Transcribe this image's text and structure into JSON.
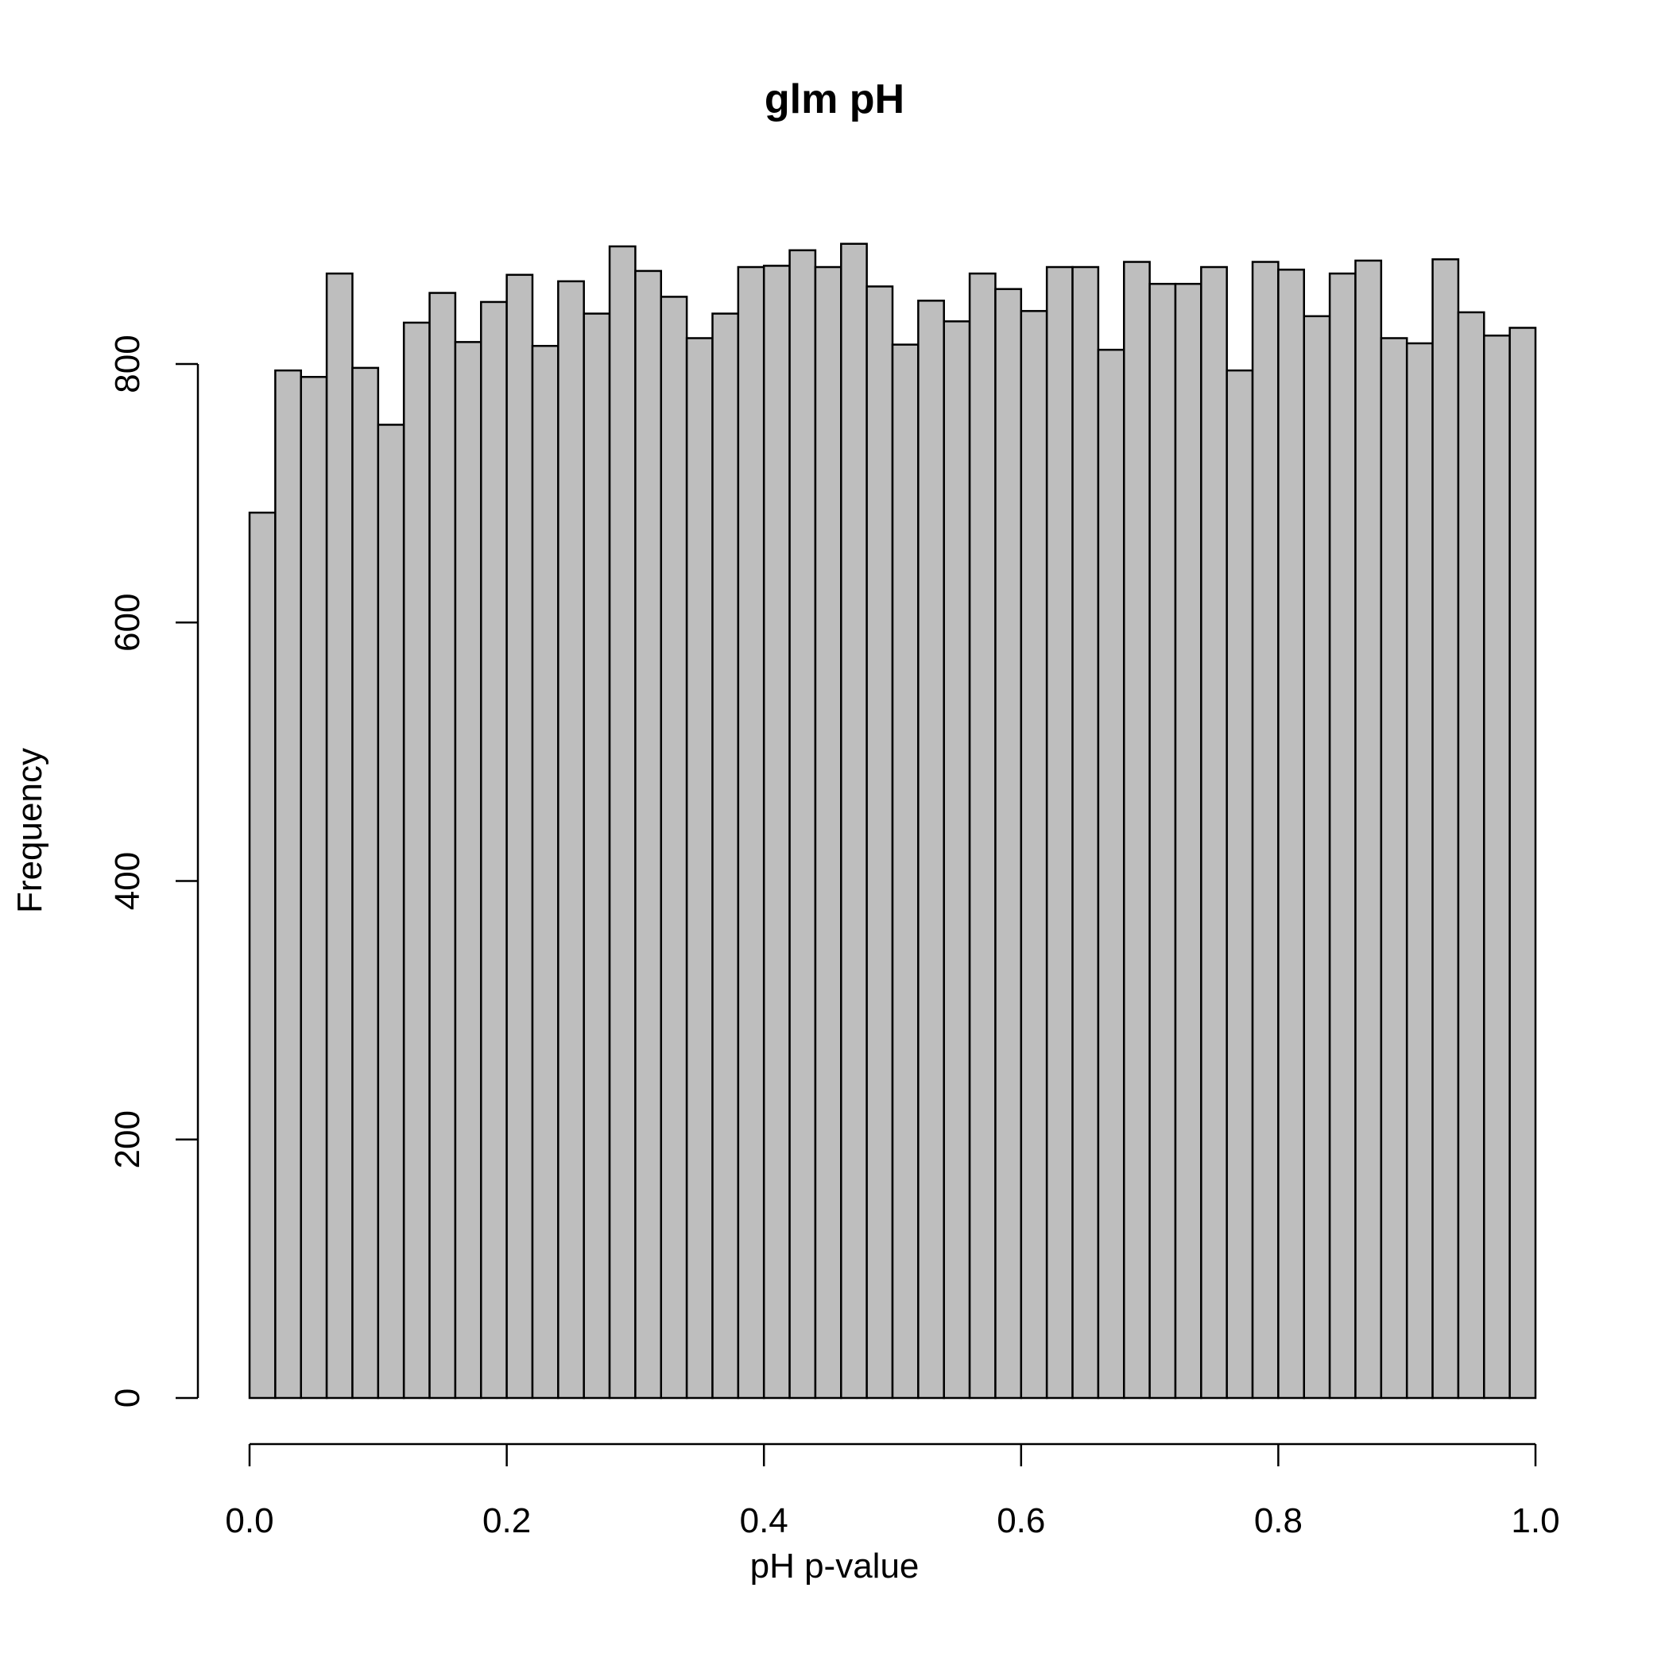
{
  "chart_data": {
    "type": "bar",
    "title": "glm pH",
    "xlabel": "pH p-value",
    "ylabel": "Frequency",
    "bin_width": 0.02,
    "xlim": [
      0,
      1
    ],
    "ylim": [
      0,
      800
    ],
    "x_ticks": [
      "0.0",
      "0.2",
      "0.4",
      "0.6",
      "0.8",
      "1.0"
    ],
    "y_ticks": [
      "0",
      "200",
      "400",
      "600",
      "800"
    ],
    "bin_starts": [
      0.0,
      0.02,
      0.04,
      0.06,
      0.08,
      0.1,
      0.12,
      0.14,
      0.16,
      0.18,
      0.2,
      0.22,
      0.24,
      0.26,
      0.28,
      0.3,
      0.32,
      0.34,
      0.36,
      0.38,
      0.4,
      0.42,
      0.44,
      0.46,
      0.48,
      0.5,
      0.52,
      0.54,
      0.56,
      0.58,
      0.6,
      0.62,
      0.64,
      0.66,
      0.68,
      0.7,
      0.72,
      0.74,
      0.76,
      0.78,
      0.8,
      0.82,
      0.84,
      0.86,
      0.88,
      0.9,
      0.92,
      0.94,
      0.96,
      0.98
    ],
    "values": [
      685,
      795,
      790,
      870,
      797,
      753,
      832,
      855,
      817,
      848,
      869,
      814,
      864,
      839,
      891,
      872,
      852,
      820,
      839,
      875,
      876,
      888,
      875,
      893,
      860,
      815,
      849,
      833,
      870,
      858,
      841,
      875,
      875,
      811,
      879,
      862,
      862,
      875,
      795,
      879,
      873,
      837,
      870,
      880,
      820,
      816,
      881,
      840,
      822,
      828
    ],
    "bar_color": "#bebebe",
    "grid": false,
    "legend": "none"
  }
}
